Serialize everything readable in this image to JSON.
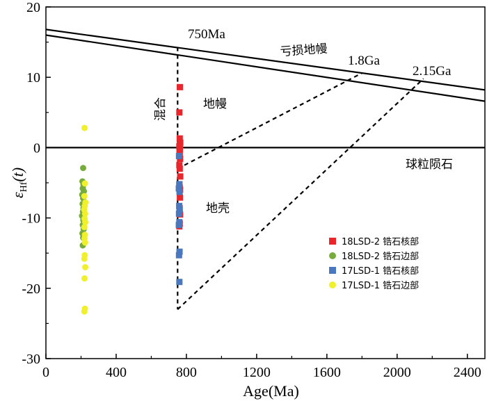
{
  "chart_data": {
    "type": "scatter",
    "xlabel": "Age(Ma)",
    "ylabel_symbol": "ε",
    "ylabel_sub": "Hf",
    "ylabel_arg": "(t)",
    "xlim": [
      0,
      2500
    ],
    "ylim": [
      -30,
      20
    ],
    "x_ticks": [
      "0",
      "400",
      "800",
      "1200",
      "1600",
      "2000",
      "2400"
    ],
    "y_ticks": [
      "20",
      "10",
      "0",
      "-10",
      "-20",
      "-30"
    ],
    "reference_lines": [
      {
        "name": "depleted-mantle-upper",
        "x": [
          0,
          2500
        ],
        "y": [
          16.8,
          8.2
        ]
      },
      {
        "name": "depleted-mantle-lower",
        "x": [
          0,
          2500
        ],
        "y": [
          16.0,
          6.6
        ]
      },
      {
        "name": "chur",
        "x": [
          0,
          2500
        ],
        "y": [
          0,
          0
        ]
      }
    ],
    "guide_lines": [
      {
        "name": "750ma-line",
        "x": [
          750,
          750
        ],
        "y": [
          14.3,
          -23.0
        ]
      },
      {
        "name": "1-8ga-evolution",
        "x": [
          750,
          1800
        ],
        "y": [
          -3.0,
          10.6
        ]
      },
      {
        "name": "2-15ga-evolution",
        "x": [
          750,
          2150
        ],
        "y": [
          -23.0,
          9.8
        ]
      }
    ],
    "annotations": {
      "age_750": "750Ma",
      "depleted_mantle": "亏损地幔",
      "age_1_8": "1.8Ga",
      "age_2_15": "2.15Ga",
      "mixing": "混合",
      "mantle": "地幔",
      "chur": "球粒陨石",
      "crust": "地壳"
    },
    "series": [
      {
        "name": "18LSD-2 锆石核部",
        "marker": "square",
        "color": "#e8262c",
        "points": [
          [
            763,
            8.6
          ],
          [
            760,
            5.0
          ],
          [
            762,
            1.3
          ],
          [
            765,
            0.7
          ],
          [
            760,
            0.2
          ],
          [
            763,
            -0.2
          ],
          [
            761,
            -0.5
          ],
          [
            762,
            -0.9
          ],
          [
            764,
            -1.6
          ],
          [
            760,
            -2.5
          ],
          [
            762,
            -3.0
          ],
          [
            765,
            -4.1
          ],
          [
            760,
            -5.2
          ],
          [
            762,
            -5.7
          ],
          [
            764,
            -6.0
          ],
          [
            763,
            -7.1
          ],
          [
            761,
            -8.6
          ],
          [
            764,
            -9.5
          ],
          [
            762,
            -10.8
          ],
          [
            760,
            -11.2
          ]
        ]
      },
      {
        "name": "18LSD-2 锆石边部",
        "marker": "circle",
        "color": "#77ac3d",
        "points": [
          [
            212,
            -2.9
          ],
          [
            208,
            -4.8
          ],
          [
            214,
            -5.3
          ],
          [
            210,
            -5.8
          ],
          [
            216,
            -6.2
          ],
          [
            207,
            -6.7
          ],
          [
            212,
            -7.2
          ],
          [
            209,
            -8.0
          ],
          [
            214,
            -8.6
          ],
          [
            211,
            -9.1
          ],
          [
            206,
            -9.7
          ],
          [
            213,
            -10.3
          ],
          [
            210,
            -11.0
          ],
          [
            215,
            -11.6
          ],
          [
            208,
            -12.2
          ],
          [
            212,
            -12.8
          ],
          [
            210,
            -13.9
          ]
        ]
      },
      {
        "name": "17LSD-1 锆石核部",
        "marker": "square",
        "color": "#4a78be",
        "points": [
          [
            758,
            -1.2
          ],
          [
            760,
            -5.2
          ],
          [
            757,
            -5.8
          ],
          [
            761,
            -6.3
          ],
          [
            759,
            -8.3
          ],
          [
            762,
            -8.8
          ],
          [
            758,
            -9.4
          ],
          [
            760,
            -10.6
          ],
          [
            757,
            -11.0
          ],
          [
            761,
            -14.8
          ],
          [
            758,
            -15.3
          ],
          [
            760,
            -19.1
          ]
        ]
      },
      {
        "name": "17LSD-1 锆石边部",
        "marker": "circle",
        "color": "#f0f02c",
        "points": [
          [
            220,
            2.8
          ],
          [
            222,
            -5.1
          ],
          [
            219,
            -6.9
          ],
          [
            225,
            -7.8
          ],
          [
            221,
            -8.3
          ],
          [
            218,
            -8.8
          ],
          [
            223,
            -9.4
          ],
          [
            220,
            -10.1
          ],
          [
            224,
            -10.6
          ],
          [
            219,
            -11.3
          ],
          [
            222,
            -12.4
          ],
          [
            220,
            -12.9
          ],
          [
            223,
            -13.5
          ],
          [
            221,
            -15.3
          ],
          [
            219,
            -15.8
          ],
          [
            224,
            -17.0
          ],
          [
            220,
            -18.6
          ],
          [
            222,
            -22.9
          ],
          [
            219,
            -23.3
          ]
        ]
      }
    ]
  }
}
